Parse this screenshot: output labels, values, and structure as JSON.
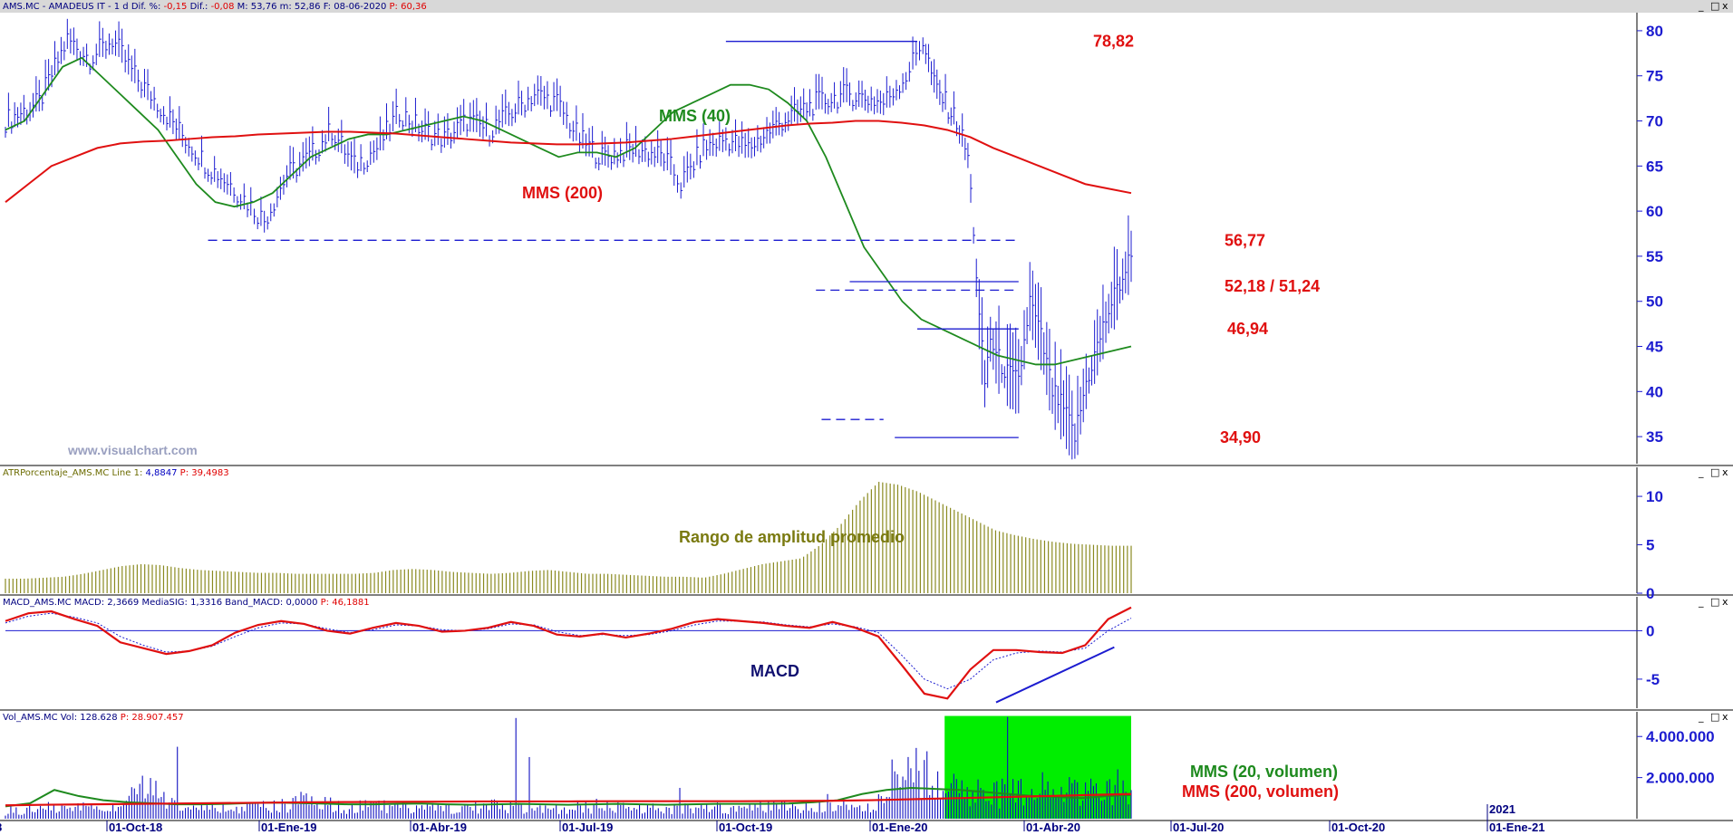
{
  "windows": [
    {
      "header_parts": [
        {
          "text": "AMS.MC - AMADEUS IT -  1 d  Dif. %: ",
          "color": "#000080"
        },
        {
          "text": "-0,15",
          "color": "#e00000"
        },
        {
          "text": "  Dif.: ",
          "color": "#000080"
        },
        {
          "text": "-0,08",
          "color": "#e00000"
        },
        {
          "text": "  M: 53,76  m: 52,86  F: 08-06-2020  ",
          "color": "#000080"
        },
        {
          "text": "P: 60,36",
          "color": "#e00000"
        }
      ]
    },
    {
      "header_parts": [
        {
          "text": "ATRPorcentaje_AMS.MC  Line 1: ",
          "color": "#6b6b00"
        },
        {
          "text": "4,8847",
          "color": "#0000c0"
        },
        {
          "text": "  P: 39,4983",
          "color": "#e00000"
        }
      ]
    },
    {
      "header_parts": [
        {
          "text": "MACD_AMS.MC  MACD: 2,3669  MediaSIG: 1,3316  Band_MACD: 0,0000  ",
          "color": "#000080"
        },
        {
          "text": "P: 46,1881",
          "color": "#e00000"
        }
      ]
    },
    {
      "header_parts": [
        {
          "text": "Vol_AMS.MC  Vol: 128.628  ",
          "color": "#000080"
        },
        {
          "text": "P: 28.907.457",
          "color": "#e00000"
        }
      ]
    }
  ],
  "window_buttons": [
    "_",
    "□",
    "x"
  ],
  "watermark": "www.visualchart.com",
  "colors": {
    "price": "#1c1cd0",
    "mms40": "#1e8a1e",
    "mms200": "#e01010",
    "atr": "#8a8a20",
    "macd": "#e01010",
    "signal": "#1c1cd0",
    "volume": "#1010c0",
    "highlight": "#00ee00",
    "annotation_red": "#e01010"
  },
  "chart_data": [
    {
      "type": "line",
      "title": "AMS.MC - AMADEUS IT - 1 d",
      "ylim": [
        32,
        82
      ],
      "y_ticks": [
        80,
        75,
        70,
        65,
        60,
        55,
        50,
        45,
        40,
        35
      ],
      "x_ticks": [
        "01-Oct-18",
        "01-Ene-19",
        "01-Abr-19",
        "01-Jul-19",
        "01-Oct-19",
        "01-Ene-20",
        "01-Abr-20",
        "01-Jul-20",
        "01-Oct-20",
        "01-Ene-21"
      ],
      "series": [
        {
          "name": "price",
          "style": "ohlc-bars",
          "x": [
            0,
            0.03,
            0.055,
            0.075,
            0.095,
            0.115,
            0.135,
            0.16,
            0.18,
            0.2,
            0.215,
            0.23,
            0.25,
            0.27,
            0.29,
            0.31,
            0.33,
            0.35,
            0.37,
            0.39,
            0.41,
            0.43,
            0.45,
            0.47,
            0.49,
            0.51,
            0.53,
            0.56,
            0.585,
            0.6,
            0.62,
            0.64,
            0.66,
            0.69,
            0.72,
            0.75,
            0.78,
            0.8,
            0.815,
            0.825,
            0.835,
            0.845,
            0.855,
            0.86,
            0.865,
            0.87,
            0.875,
            0.88,
            0.89,
            0.9,
            0.91,
            0.92,
            0.93,
            0.94,
            0.95,
            0.96,
            0.97,
            0.98,
            0.99,
            1.0
          ],
          "values": [
            70,
            72,
            79,
            77,
            79,
            75,
            72,
            68,
            65,
            63,
            61,
            59,
            64,
            66,
            69,
            65,
            67,
            71,
            69,
            68,
            70,
            69,
            71,
            73,
            72,
            68,
            66,
            67,
            66,
            63,
            67,
            68,
            67,
            70,
            72,
            73,
            72,
            75,
            79,
            74,
            72,
            70,
            66,
            58,
            48,
            41,
            46,
            44,
            42,
            41,
            50,
            46,
            40,
            38,
            35,
            41,
            45,
            49,
            52,
            55
          ]
        },
        {
          "name": "MMS (40)",
          "values": [
            69,
            70,
            73,
            76,
            77,
            75,
            73,
            71,
            69,
            66,
            63,
            61,
            60.5,
            61,
            62,
            64,
            66,
            67,
            68,
            68.5,
            68.5,
            69,
            69.5,
            70,
            70.5,
            70,
            69,
            68,
            67,
            66,
            66.5,
            66.5,
            66,
            67,
            69,
            71,
            72,
            73,
            74,
            74,
            73.5,
            72,
            70,
            66,
            61,
            56,
            53,
            50,
            48,
            47,
            46,
            45,
            44,
            43.5,
            43,
            43,
            43.5,
            44,
            44.5,
            45
          ]
        },
        {
          "name": "MMS (200)",
          "values": [
            61,
            63,
            65,
            66,
            67,
            67.5,
            67.7,
            67.8,
            68,
            68.2,
            68.3,
            68.5,
            68.6,
            68.7,
            68.8,
            68.8,
            68.7,
            68.6,
            68.4,
            68.2,
            68,
            67.8,
            67.6,
            67.5,
            67.4,
            67.4,
            67.5,
            67.6,
            67.8,
            68,
            68.3,
            68.6,
            68.9,
            69.2,
            69.5,
            69.7,
            69.8,
            70,
            70,
            69.8,
            69.5,
            69,
            68.2,
            67,
            66,
            65,
            64,
            63,
            62.5,
            62
          ]
        }
      ],
      "annotations": [
        "78,82",
        "MMS (40)",
        "MMS (200)",
        "56,77",
        "52,18 / 51,24",
        "46,94",
        "34,90"
      ],
      "levels": [
        {
          "label": "78,82",
          "value": 78.82,
          "style": "solid"
        },
        {
          "label": "56,77",
          "value": 56.77,
          "style": "dashed"
        },
        {
          "label": "52,18",
          "value": 52.18,
          "style": "solid"
        },
        {
          "label": "51,24",
          "value": 51.24,
          "style": "dashed"
        },
        {
          "label": "46,94",
          "value": 46.94,
          "style": "solid"
        },
        {
          "label": "34,90",
          "value": 34.9,
          "style": "solid"
        },
        {
          "label": "",
          "value": 36.9,
          "style": "dashed"
        }
      ]
    },
    {
      "type": "bar",
      "title": "ATRPorcentaje_AMS.MC",
      "ylim": [
        0,
        13
      ],
      "y_ticks": [
        10,
        5,
        0
      ],
      "series": [
        {
          "name": "Rango de amplitud promedio",
          "values": [
            1.5,
            1.5,
            1.6,
            1.7,
            2,
            2.4,
            2.8,
            3,
            2.9,
            2.6,
            2.4,
            2.3,
            2.2,
            2.1,
            2.1,
            2,
            2,
            2,
            2,
            2.1,
            2.4,
            2.5,
            2.4,
            2.2,
            2.1,
            2,
            2.1,
            2.3,
            2.4,
            2.2,
            2,
            2,
            1.9,
            1.8,
            1.7,
            1.7,
            1.6,
            2,
            2.5,
            3,
            3.3,
            3.6,
            5,
            7,
            9.5,
            11.5,
            11.2,
            10.5,
            9.5,
            8.5,
            7.5,
            6.5,
            6,
            5.6,
            5.3,
            5.1,
            5,
            4.9,
            4.9
          ]
        }
      ],
      "annotations": [
        "Rango de amplitud promedio"
      ]
    },
    {
      "type": "line",
      "title": "MACD_AMS.MC",
      "ylim": [
        -8,
        3.5
      ],
      "y_ticks": [
        0,
        -5
      ],
      "series": [
        {
          "name": "MACD",
          "values": [
            1,
            1.8,
            2,
            1.2,
            0.5,
            -1.2,
            -1.8,
            -2.4,
            -2.1,
            -1.5,
            -0.2,
            0.6,
            1,
            0.7,
            0,
            -0.3,
            0.3,
            0.8,
            0.5,
            -0.1,
            0,
            0.3,
            0.9,
            0.5,
            -0.4,
            -0.6,
            -0.3,
            -0.7,
            -0.3,
            0.2,
            0.9,
            1.2,
            1,
            0.8,
            0.5,
            0.3,
            0.9,
            0.3,
            -0.6,
            -3.5,
            -6.5,
            -7,
            -4,
            -2,
            -2,
            -2.2,
            -2.3,
            -1.5,
            1.2,
            2.4
          ]
        },
        {
          "name": "MediaSIG",
          "values": [
            0.8,
            1.5,
            1.8,
            1.4,
            0.8,
            -0.6,
            -1.5,
            -2.2,
            -2.1,
            -1.6,
            -0.6,
            0.3,
            0.8,
            0.7,
            0.2,
            -0.2,
            0.1,
            0.6,
            0.5,
            0.1,
            0,
            0.2,
            0.7,
            0.6,
            -0.1,
            -0.5,
            -0.4,
            -0.5,
            -0.4,
            0,
            0.6,
            1,
            1,
            0.9,
            0.6,
            0.4,
            0.7,
            0.4,
            -0.2,
            -2.5,
            -5,
            -6,
            -5,
            -3,
            -2.3,
            -2.1,
            -2.2,
            -1.8,
            0,
            1.3
          ]
        }
      ],
      "annotations": [
        "MACD"
      ]
    },
    {
      "type": "bar",
      "title": "Vol_AMS.MC",
      "ylim": [
        0,
        5200000
      ],
      "y_ticks": [
        "4.000.000",
        "2.000.000"
      ],
      "series": [
        {
          "name": "Vol",
          "values": [
            500000,
            600000,
            700000,
            650000,
            700000,
            800000,
            3500000,
            900000,
            700000,
            650000,
            600000,
            700000,
            800000,
            1200000,
            900000,
            700000,
            800000,
            750000,
            700000,
            650000,
            700000,
            800000,
            750000,
            650000,
            600000,
            700000,
            900000,
            700000,
            650000,
            600000,
            700000,
            800000,
            650000,
            700000,
            750000,
            800000,
            900000,
            700000,
            1100000,
            3500000,
            3000000,
            2200000,
            1800000,
            1600000,
            1700000,
            2000000,
            1700000,
            1800000,
            2000000,
            2300000
          ]
        },
        {
          "name": "MMS (20, volumen)",
          "values": [
            600000,
            750000,
            1400000,
            1100000,
            900000,
            800000,
            750000,
            700000,
            700000,
            720000,
            760000,
            780000,
            760000,
            730000,
            700000,
            700000,
            720000,
            740000,
            700000,
            680000,
            700000,
            720000,
            700000,
            680000,
            700000,
            720000,
            700000,
            680000,
            700000,
            720000,
            720000,
            720000,
            740000,
            800000,
            900000,
            1200000,
            1400000,
            1500000,
            1450000,
            1400000,
            1300000,
            1200000,
            1100000,
            1050000,
            1000000,
            1100000,
            1150000
          ]
        },
        {
          "name": "MMS (200, volumen)",
          "values": [
            650000,
            680000,
            700000,
            720000,
            740000,
            760000,
            780000,
            800000,
            810000,
            820000,
            830000,
            840000,
            840000,
            840000,
            850000,
            850000,
            850000,
            850000,
            860000,
            870000,
            900000,
            950000,
            1000000,
            1050000,
            1100000,
            1150000,
            1200000
          ]
        }
      ],
      "annotations": [
        "MMS (20, volumen)",
        "MMS (200, volumen)"
      ]
    }
  ]
}
